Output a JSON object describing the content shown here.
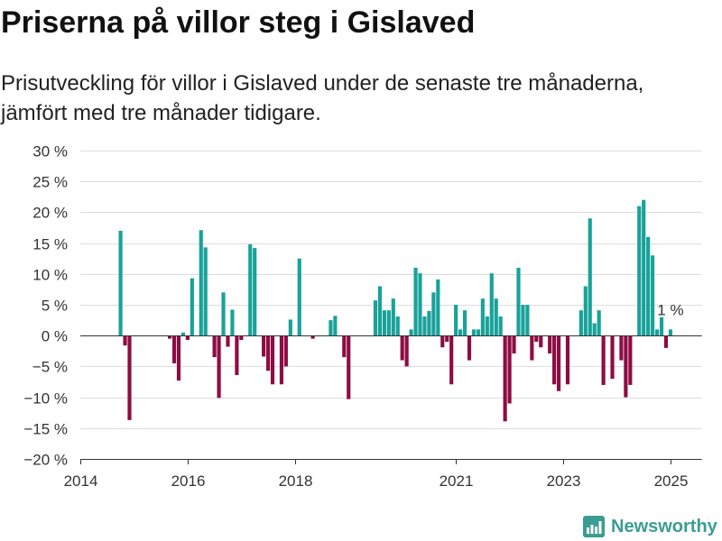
{
  "chart_data": {
    "type": "bar",
    "title": "Priserna på villor steg i Gislaved",
    "subtitle_lines": [
      "Prisutveckling för villor i Gislaved under de senaste tre månaderna,",
      "jämfört med tre månader tidigare."
    ],
    "x": [
      "2014-10",
      "2014-11",
      "2014-12",
      "2015-09",
      "2015-10",
      "2015-11",
      "2015-12",
      "2016-01",
      "2016-02",
      "2016-04",
      "2016-05",
      "2016-07",
      "2016-08",
      "2016-09",
      "2016-10",
      "2016-11",
      "2016-12",
      "2017-01",
      "2017-03",
      "2017-04",
      "2017-06",
      "2017-07",
      "2017-08",
      "2017-10",
      "2017-11",
      "2017-12",
      "2018-02",
      "2018-05",
      "2018-09",
      "2018-10",
      "2018-12",
      "2019-01",
      "2019-07",
      "2019-08",
      "2019-09",
      "2019-10",
      "2019-11",
      "2019-12",
      "2020-01",
      "2020-02",
      "2020-03",
      "2020-04",
      "2020-05",
      "2020-06",
      "2020-07",
      "2020-08",
      "2020-09",
      "2020-10",
      "2020-11",
      "2020-12",
      "2021-01",
      "2021-02",
      "2021-03",
      "2021-04",
      "2021-05",
      "2021-06",
      "2021-07",
      "2021-08",
      "2021-09",
      "2021-10",
      "2021-11",
      "2021-12",
      "2022-01",
      "2022-02",
      "2022-03",
      "2022-04",
      "2022-05",
      "2022-06",
      "2022-07",
      "2022-08",
      "2022-10",
      "2022-11",
      "2022-12",
      "2023-02",
      "2023-05",
      "2023-06",
      "2023-07",
      "2023-08",
      "2023-09",
      "2023-10",
      "2023-12",
      "2024-02",
      "2024-03",
      "2024-04",
      "2024-06",
      "2024-07",
      "2024-08",
      "2024-09",
      "2024-10",
      "2024-11",
      "2024-12",
      "2025-01"
    ],
    "values": [
      17,
      -1.6,
      -13.7,
      -0.5,
      -4.5,
      -7.3,
      0.5,
      -0.7,
      9.3,
      17.1,
      14.3,
      -3.5,
      -10.1,
      7,
      -1.8,
      4.2,
      -6.4,
      -0.7,
      14.8,
      14.2,
      -3.4,
      -5.7,
      -7.9,
      -7.9,
      -5,
      2.6,
      12.5,
      -0.5,
      2.5,
      3.2,
      -3.5,
      -10.3,
      5.7,
      8,
      4.1,
      4.1,
      6,
      3.1,
      -4,
      -5,
      1,
      11,
      10.1,
      3.1,
      4,
      7,
      9.1,
      -1.9,
      -1,
      -7.9,
      5,
      1,
      4.1,
      -4,
      1,
      1,
      6,
      3.1,
      10.1,
      6,
      3.1,
      -13.9,
      -11,
      -2.9,
      11,
      5,
      5,
      -4,
      -1,
      -1.9,
      -2.9,
      -7.9,
      -9,
      -7.9,
      4.1,
      8,
      19,
      2,
      4.1,
      -8,
      -7,
      -4,
      -10,
      -8,
      21,
      22,
      16,
      13,
      1,
      3,
      -2,
      1
    ],
    "xlim": [
      "2014-01",
      "2025-08"
    ],
    "xtick_labels": [
      "2014",
      "2016",
      "2018",
      "2021",
      "2023",
      "2025"
    ],
    "ylim": [
      -20,
      30
    ],
    "yticks": [
      30,
      25,
      20,
      15,
      10,
      5,
      0,
      -5,
      -10,
      -15,
      -20
    ],
    "ytick_labels": [
      "30 %",
      "25 %",
      "20 %",
      "15 %",
      "10 %",
      "5 %",
      "0 %",
      "−5 %",
      "−10 %",
      "−15 %",
      "−20 %"
    ],
    "annotations": [
      {
        "x": "2025-01",
        "text": "1 %"
      }
    ],
    "colors": {
      "increase": "#18a29a",
      "decrease": "#8e0c43"
    },
    "grid": true
  },
  "brand": {
    "name": "Newsworthy",
    "icon": "newsworthy-logo-icon",
    "color": "#3a9d91"
  }
}
